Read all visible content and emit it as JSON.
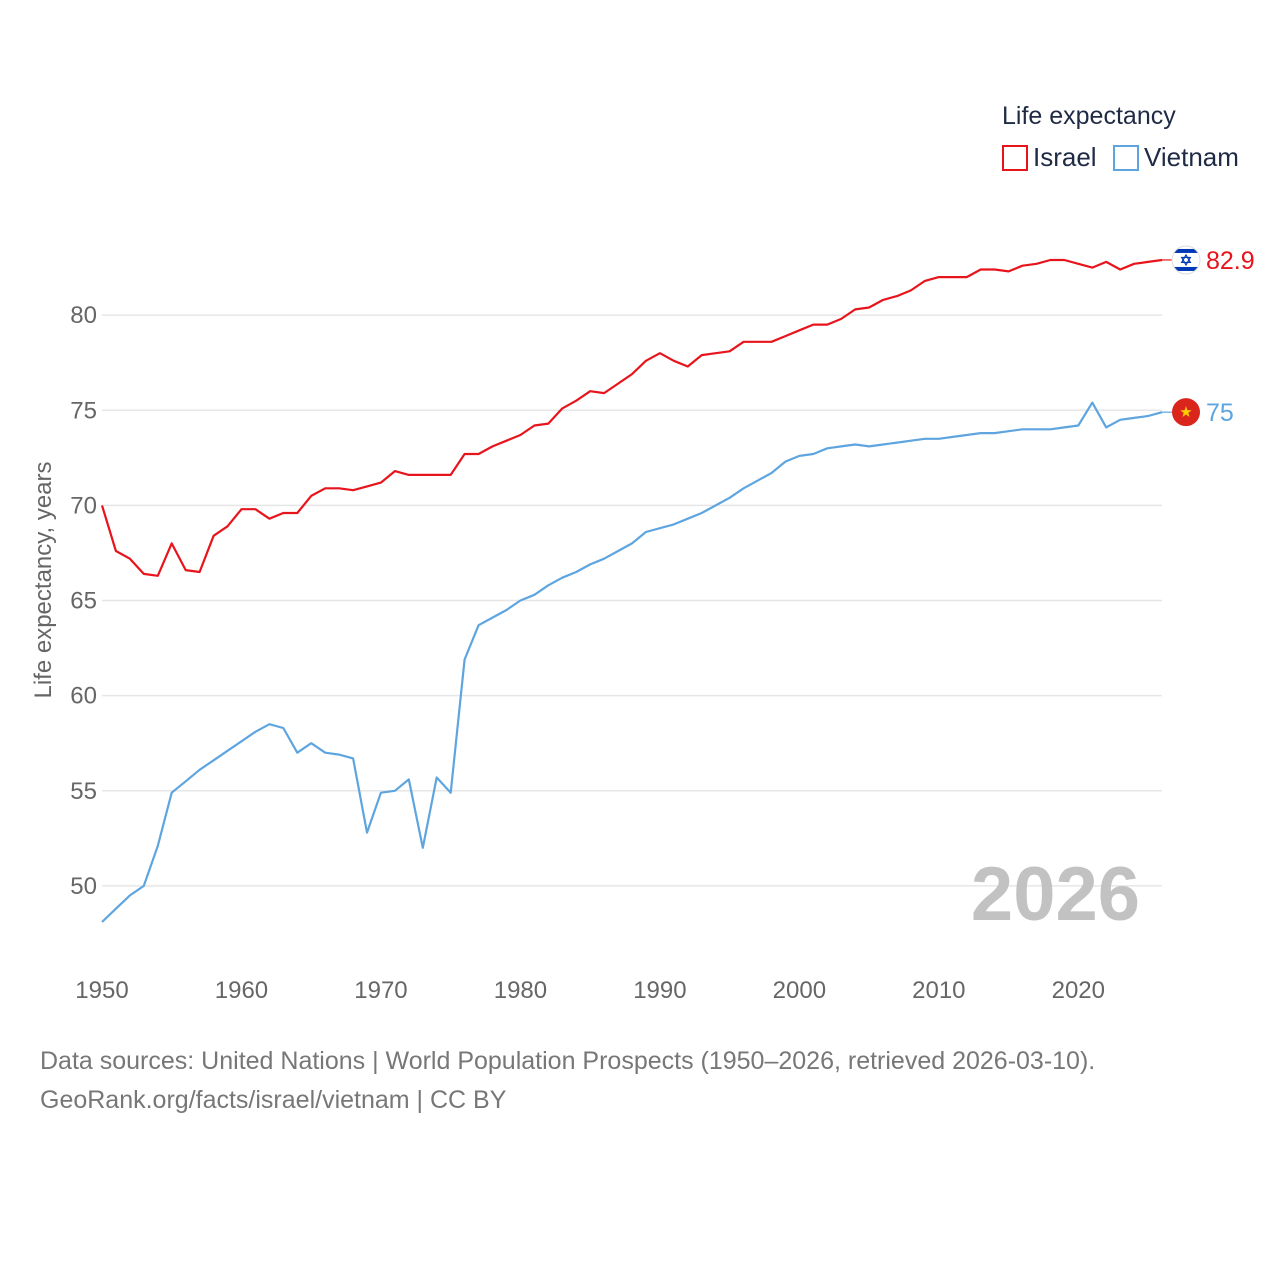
{
  "chart_data": {
    "type": "line",
    "title": "",
    "ylabel": "Life expectancy, years",
    "xlabel": "",
    "xlim": [
      1950,
      2026
    ],
    "ylim": [
      46,
      85
    ],
    "x_ticks": [
      1950,
      1960,
      1970,
      1980,
      1990,
      2000,
      2010,
      2020
    ],
    "y_ticks": [
      50,
      55,
      60,
      65,
      70,
      75,
      80
    ],
    "legend": {
      "title": "Life expectancy",
      "position": "top-right"
    },
    "year_marker": "2026",
    "x": [
      1950,
      1951,
      1952,
      1953,
      1954,
      1955,
      1956,
      1957,
      1958,
      1959,
      1960,
      1961,
      1962,
      1963,
      1964,
      1965,
      1966,
      1967,
      1968,
      1969,
      1970,
      1971,
      1972,
      1973,
      1974,
      1975,
      1976,
      1977,
      1978,
      1979,
      1980,
      1981,
      1982,
      1983,
      1984,
      1985,
      1986,
      1987,
      1988,
      1989,
      1990,
      1991,
      1992,
      1993,
      1994,
      1995,
      1996,
      1997,
      1998,
      1999,
      2000,
      2001,
      2002,
      2003,
      2004,
      2005,
      2006,
      2007,
      2008,
      2009,
      2010,
      2011,
      2012,
      2013,
      2014,
      2015,
      2016,
      2017,
      2018,
      2019,
      2020,
      2021,
      2022,
      2023,
      2024,
      2025,
      2026
    ],
    "series": [
      {
        "name": "Israel",
        "color": "#e8141c",
        "end_label": "82.9",
        "flag_icon": "israel-flag-icon",
        "values": [
          70.0,
          67.6,
          67.2,
          66.4,
          66.3,
          68.0,
          66.6,
          66.5,
          68.4,
          68.9,
          69.8,
          69.8,
          69.3,
          69.6,
          69.6,
          70.5,
          70.9,
          70.9,
          70.8,
          71.0,
          71.2,
          71.8,
          71.6,
          71.6,
          71.6,
          71.6,
          72.7,
          72.7,
          73.1,
          73.4,
          73.7,
          74.2,
          74.3,
          75.1,
          75.5,
          76.0,
          75.9,
          76.4,
          76.9,
          77.6,
          78.0,
          77.6,
          77.3,
          77.9,
          78.0,
          78.1,
          78.6,
          78.6,
          78.6,
          78.9,
          79.2,
          79.5,
          79.5,
          79.8,
          80.3,
          80.4,
          80.8,
          81.0,
          81.3,
          81.8,
          82.0,
          82.0,
          82.0,
          82.4,
          82.4,
          82.3,
          82.6,
          82.7,
          82.9,
          82.9,
          82.7,
          82.5,
          82.8,
          82.4,
          82.7,
          82.8,
          82.9
        ]
      },
      {
        "name": "Vietnam",
        "color": "#5ea5e0",
        "end_label": "75",
        "flag_icon": "vietnam-flag-icon",
        "values": [
          48.1,
          48.8,
          49.5,
          50.0,
          52.1,
          54.9,
          55.5,
          56.1,
          56.6,
          57.1,
          57.6,
          58.1,
          58.5,
          58.3,
          57.0,
          57.5,
          57.0,
          56.9,
          56.7,
          52.8,
          54.9,
          55.0,
          55.6,
          52.0,
          55.7,
          54.9,
          61.9,
          63.7,
          64.1,
          64.5,
          65.0,
          65.3,
          65.8,
          66.2,
          66.5,
          66.9,
          67.2,
          67.6,
          68.0,
          68.6,
          68.8,
          69.0,
          69.3,
          69.6,
          70.0,
          70.4,
          70.9,
          71.3,
          71.7,
          72.3,
          72.6,
          72.7,
          73.0,
          73.1,
          73.2,
          73.1,
          73.2,
          73.3,
          73.4,
          73.5,
          73.5,
          73.6,
          73.7,
          73.8,
          73.8,
          73.9,
          74.0,
          74.0,
          74.0,
          74.1,
          74.2,
          75.4,
          74.1,
          74.5,
          74.6,
          74.7,
          74.9
        ]
      }
    ]
  },
  "footer": {
    "source_line": "Data sources: United Nations | World Population Prospects (1950–2026, retrieved 2026-03-10).",
    "credit_line": "GeoRank.org/facts/israel/vietnam | CC BY"
  }
}
